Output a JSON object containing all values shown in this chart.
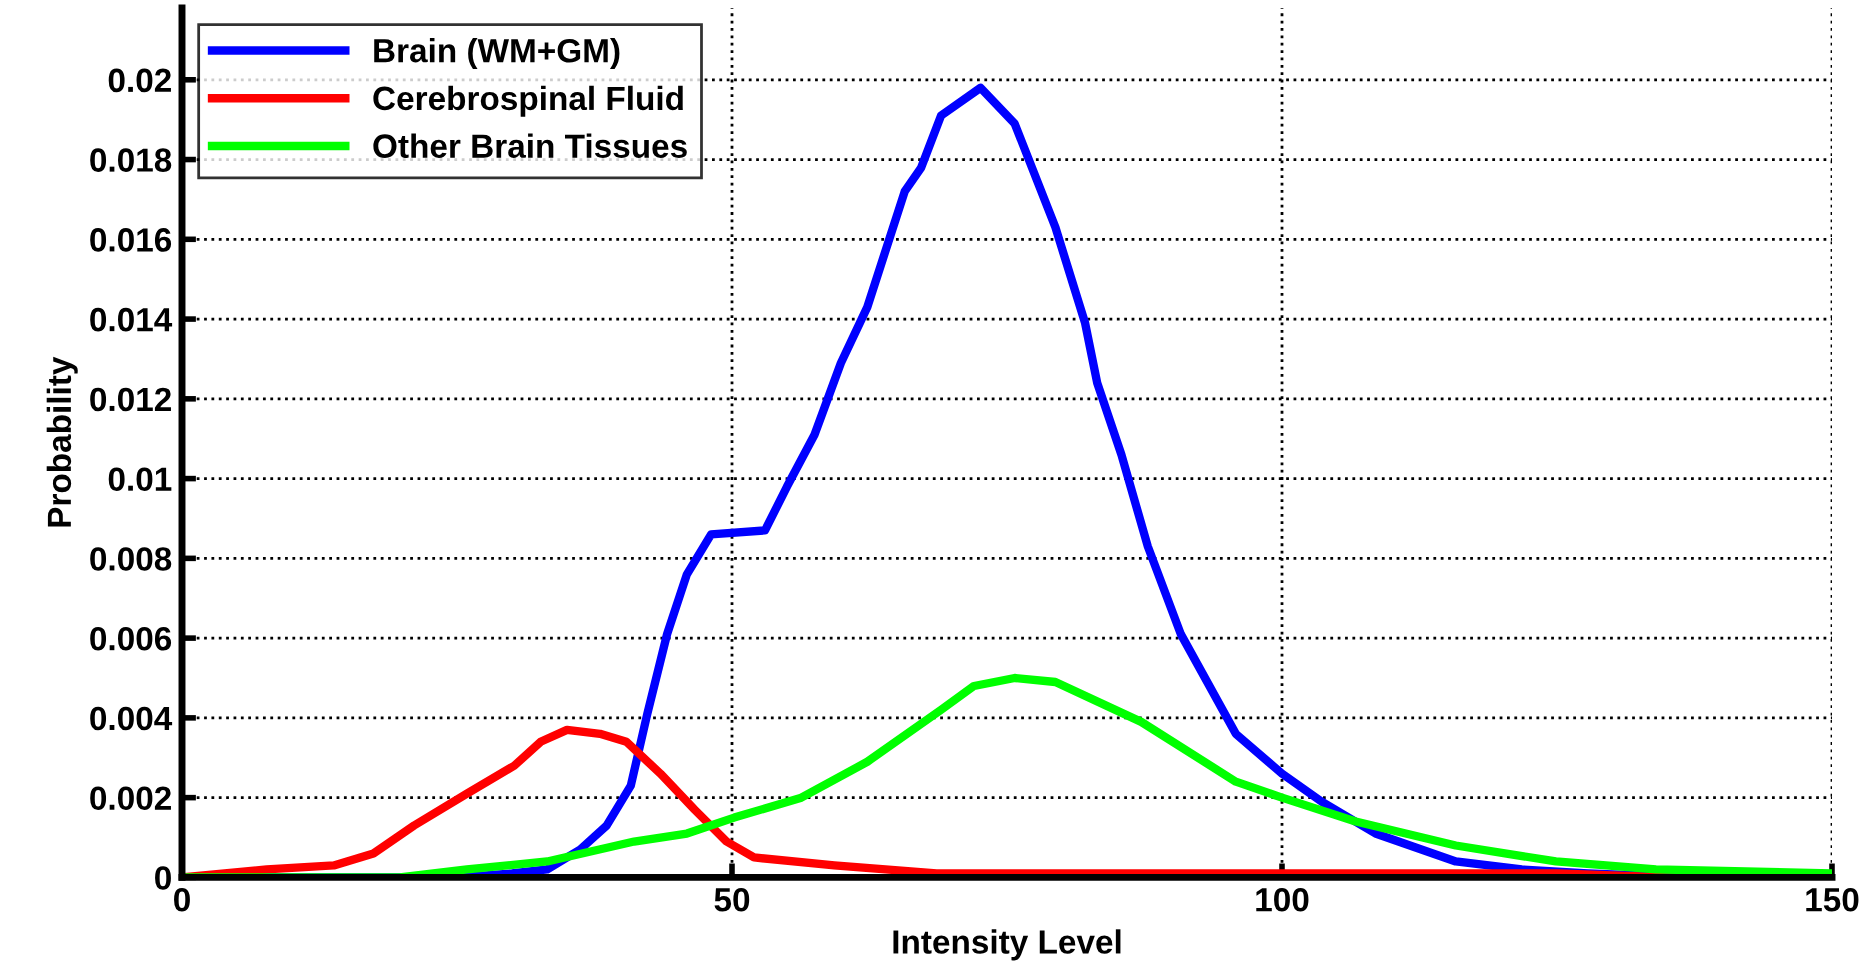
{
  "chart_data": {
    "type": "line",
    "xlabel": "Intensity Level",
    "ylabel": "Probability",
    "xlim": [
      0,
      150
    ],
    "xticks": [
      0,
      50,
      100,
      150
    ],
    "ylim": [
      0,
      0.0218
    ],
    "yticks": [
      0,
      0.002,
      0.004,
      0.006,
      0.008,
      0.01,
      0.012,
      0.014,
      0.016,
      0.018,
      0.02
    ],
    "grid": true,
    "legend": "top left",
    "series": [
      {
        "name": "Brain (WM+GM)",
        "color": "#0000ff",
        "x": [
          0,
          25,
          30,
          33.2,
          36.2,
          38.6,
          40.8,
          42.3,
          44.1,
          45.9,
          48.1,
          53,
          55,
          57.5,
          59.9,
          62.3,
          65.7,
          67.2,
          69,
          72.6,
          75.7,
          79.4,
          82.1,
          83.2,
          85.4,
          87.8,
          90.8,
          95.8,
          100,
          103.6,
          108.5,
          115.8,
          121.8,
          127.8,
          137,
          150
        ],
        "values": [
          0,
          0,
          0.0001,
          0.0002,
          0.0007,
          0.0013,
          0.0023,
          0.0041,
          0.0061,
          0.0076,
          0.0086,
          0.0087,
          0.0098,
          0.0111,
          0.0129,
          0.0143,
          0.0172,
          0.0178,
          0.0191,
          0.0198,
          0.0189,
          0.0163,
          0.0139,
          0.0124,
          0.0106,
          0.0083,
          0.0061,
          0.0036,
          0.0026,
          0.0019,
          0.0011,
          0.0004,
          0.0002,
          0.0001,
          0,
          0
        ]
      },
      {
        "name": "Cerebrospinal Fluid",
        "color": "#ff0000",
        "x": [
          0,
          7.7,
          13.8,
          17.4,
          21.1,
          25.9,
          30.2,
          32.6,
          35,
          38,
          40.4,
          43.5,
          46.6,
          49.5,
          52,
          59.3,
          68.6,
          90,
          110,
          125,
          135,
          150
        ],
        "values": [
          0,
          0.0002,
          0.0003,
          0.0006,
          0.0013,
          0.0021,
          0.0028,
          0.0034,
          0.0037,
          0.0036,
          0.0034,
          0.0026,
          0.0017,
          0.0009,
          0.0005,
          0.0003,
          0.0001,
          0.0001,
          0.0001,
          0.0001,
          0,
          0
        ]
      },
      {
        "name": "Other Brain Tissues",
        "color": "#00ff00",
        "x": [
          0,
          19.8,
          25.9,
          33.2,
          41.1,
          45.9,
          50.2,
          56.3,
          62.3,
          69,
          72,
          75.7,
          79.4,
          87.2,
          95.8,
          100,
          106.7,
          115.8,
          124.9,
          134,
          150
        ],
        "values": [
          0,
          0,
          0.0002,
          0.0004,
          0.0009,
          0.0011,
          0.0015,
          0.002,
          0.0029,
          0.0042,
          0.0048,
          0.005,
          0.0049,
          0.0039,
          0.0024,
          0.002,
          0.0014,
          0.0008,
          0.0004,
          0.0002,
          0.0001
        ]
      }
    ]
  }
}
